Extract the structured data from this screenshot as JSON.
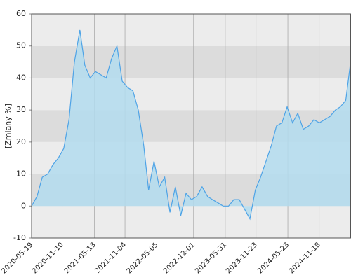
{
  "chart_data": {
    "type": "area",
    "ylabel": "[Zmiany %]",
    "x": [
      "2020-05-19",
      "2020-06-19",
      "2020-07-19",
      "2020-08-19",
      "2020-09-19",
      "2020-10-19",
      "2020-11-19",
      "2020-12-19",
      "2021-01-19",
      "2021-02-19",
      "2021-03-19",
      "2021-04-19",
      "2021-05-19",
      "2021-06-19",
      "2021-07-19",
      "2021-08-19",
      "2021-09-19",
      "2021-10-19",
      "2021-11-19",
      "2021-12-19",
      "2022-01-19",
      "2022-02-19",
      "2022-03-19",
      "2022-04-19",
      "2022-05-19",
      "2022-06-19",
      "2022-07-19",
      "2022-08-19",
      "2022-09-19",
      "2022-10-19",
      "2022-11-19",
      "2022-12-19",
      "2023-01-19",
      "2023-02-19",
      "2023-03-19",
      "2023-04-19",
      "2023-05-19",
      "2023-06-19",
      "2023-07-19",
      "2023-08-19",
      "2023-09-19",
      "2023-10-19",
      "2023-11-19",
      "2023-12-19",
      "2024-01-19",
      "2024-02-19",
      "2024-03-19",
      "2024-04-19",
      "2024-05-19",
      "2024-06-19",
      "2024-07-19",
      "2024-08-19",
      "2024-09-19",
      "2024-10-19",
      "2024-11-19",
      "2024-12-19",
      "2025-01-19",
      "2025-02-19",
      "2025-03-19",
      "2025-04-19",
      "2025-05-19"
    ],
    "values": [
      0,
      3,
      9,
      10,
      13,
      15,
      18,
      27,
      45,
      55,
      44,
      40,
      42,
      41,
      40,
      46,
      50,
      39,
      37,
      36,
      30,
      19,
      5,
      14,
      6,
      9,
      -2,
      6,
      -3,
      4,
      2,
      3,
      6,
      3,
      2,
      1,
      0,
      0,
      2,
      2,
      -1,
      -4,
      5,
      9,
      14,
      19,
      25,
      26,
      31,
      26,
      29,
      24,
      25,
      27,
      26,
      27,
      28,
      30,
      31,
      33,
      46
    ],
    "line_color": "#4ea3e6",
    "fill_color": "#b3dcee",
    "xlim": [
      "2020-05-19",
      "2025-05-19"
    ],
    "xticks": [
      "2020-05-19",
      "2020-11-10",
      "2021-05-13",
      "2021-11-04",
      "2022-05-05",
      "2022-12-01",
      "2023-05-31",
      "2023-11-23",
      "2024-05-23",
      "2024-11-18"
    ],
    "ylim": [
      -10,
      60
    ],
    "yticks": [
      -10,
      0,
      10,
      20,
      30,
      40,
      50,
      60
    ],
    "grid": true
  }
}
